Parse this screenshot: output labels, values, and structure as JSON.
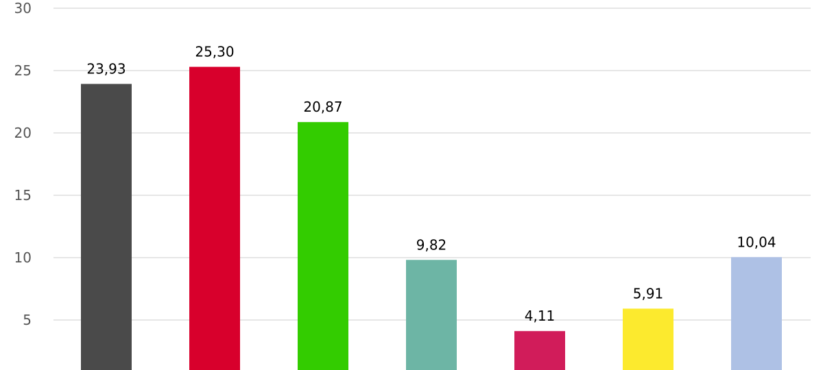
{
  "chart_data": {
    "type": "bar",
    "categories": [
      "",
      "",
      "",
      "",
      "",
      "",
      ""
    ],
    "values": [
      23.93,
      25.3,
      20.87,
      9.82,
      4.11,
      5.91,
      10.04
    ],
    "value_labels": [
      "23,93",
      "25,30",
      "20,87",
      "9,82",
      "4,11",
      "5,91",
      "10,04"
    ],
    "colors": [
      "#4a4a4a",
      "#d8002c",
      "#33cc00",
      "#6db5a5",
      "#d11c5a",
      "#fcea2e",
      "#aec1e5"
    ],
    "yticks": [
      5,
      10,
      15,
      20,
      25,
      30
    ],
    "ytick_labels": [
      "5",
      "10",
      "15",
      "20",
      "25",
      "30"
    ],
    "ylim": [
      2.9,
      30
    ],
    "grid": true,
    "legend": "none",
    "title": "",
    "xlabel": "",
    "ylabel": ""
  }
}
